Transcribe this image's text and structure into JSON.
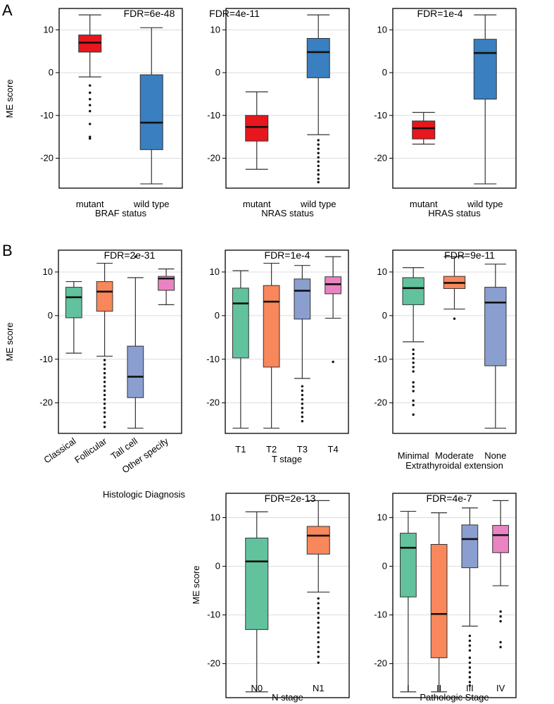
{
  "panel_labels": [
    "A",
    "B"
  ],
  "chart_data": [
    {
      "type": "boxplot",
      "title": "FDR=6e-48",
      "xlabel": "BRAF status",
      "ylabel": "ME score",
      "ylim": [
        -27,
        15
      ],
      "yticks": [
        10,
        0,
        -10,
        -20
      ],
      "categories": [
        "mutant",
        "wild type"
      ],
      "boxes": [
        {
          "name": "mutant",
          "min": -1,
          "q1": 4.8,
          "median": 7,
          "q3": 8.8,
          "max": 13.5,
          "color": "#e8161d",
          "outliers": [
            -3,
            -4.7,
            -6.2,
            -7.6,
            -9,
            -12,
            -15,
            -15.4
          ]
        },
        {
          "name": "wild type",
          "min": -26,
          "q1": -18,
          "median": -11.7,
          "q3": -0.5,
          "max": 10.5,
          "color": "#3a7fc0",
          "outliers": []
        }
      ]
    },
    {
      "type": "boxplot",
      "title": "FDR=4e-11",
      "xlabel": "NRAS status",
      "ylabel": "",
      "ylim": [
        -27,
        15
      ],
      "yticks": [
        10,
        0,
        -10,
        -20
      ],
      "categories": [
        "mutant",
        "wild type"
      ],
      "boxes": [
        {
          "name": "mutant",
          "min": -22.6,
          "q1": -16,
          "median": -12.7,
          "q3": -10,
          "max": -4.5,
          "color": "#e8161d",
          "outliers": []
        },
        {
          "name": "wild type",
          "min": -14.5,
          "q1": -1.2,
          "median": 4.8,
          "q3": 8,
          "max": 13.5,
          "color": "#3a7fc0",
          "outliers": [
            -15.8,
            -16.8,
            -17.8,
            -18.8,
            -19.8,
            -20.8,
            -21.8,
            -22.8,
            -23.8,
            -24.8,
            -25.6
          ]
        }
      ]
    },
    {
      "type": "boxplot",
      "title": "FDR=1e-4",
      "xlabel": "HRAS status",
      "ylabel": "",
      "ylim": [
        -27,
        15
      ],
      "yticks": [
        10,
        0,
        -10,
        -20
      ],
      "categories": [
        "mutant",
        "wild type"
      ],
      "boxes": [
        {
          "name": "mutant",
          "min": -16.7,
          "q1": -15.5,
          "median": -13,
          "q3": -11.3,
          "max": -9.3,
          "color": "#e8161d",
          "outliers": []
        },
        {
          "name": "wild type",
          "min": -26,
          "q1": -6.2,
          "median": 4.6,
          "q3": 7.8,
          "max": 13.5,
          "color": "#3a7fc0",
          "outliers": []
        }
      ]
    },
    {
      "type": "boxplot",
      "title": "FDR=2e-31",
      "xlabel": "Histologic Diagnosis",
      "ylabel": "ME score",
      "ylim": [
        -27,
        15
      ],
      "yticks": [
        10,
        0,
        -10,
        -20
      ],
      "categories": [
        "Classical",
        "Follicular",
        "Tall cell",
        "Other specify"
      ],
      "boxes": [
        {
          "name": "Classical",
          "min": -8.6,
          "q1": -0.5,
          "median": 4.2,
          "q3": 6.5,
          "max": 7.8,
          "color": "#62c29e",
          "outliers": []
        },
        {
          "name": "Follicular",
          "min": -9.3,
          "q1": 1,
          "median": 5.5,
          "q3": 7.8,
          "max": 12,
          "color": "#f8875b",
          "outliers": [
            -10.2,
            -11.2,
            -12.2,
            -13.2,
            -14.2,
            -15.2,
            -16.2,
            -17.2,
            -18.2,
            -19.2,
            -20.2,
            -21.2,
            -22.2,
            -23.2,
            -24.5,
            -25.5
          ]
        },
        {
          "name": "Tall cell",
          "min": -25.8,
          "q1": -18.8,
          "median": -14,
          "q3": -7,
          "max": 8.7,
          "color": "#8b9ed0",
          "outliers": [
            13.5
          ]
        },
        {
          "name": "Other specify",
          "min": 2.5,
          "q1": 5.8,
          "median": 8.5,
          "q3": 9,
          "max": 10.7,
          "color": "#e983c1",
          "outliers": []
        }
      ]
    },
    {
      "type": "boxplot",
      "title": "FDR=1e-4",
      "xlabel": "T stage",
      "ylabel": "",
      "ylim": [
        -27,
        15
      ],
      "yticks": [
        10,
        0,
        -10,
        -20
      ],
      "categories": [
        "T1",
        "T2",
        "T3",
        "T4"
      ],
      "boxes": [
        {
          "name": "T1",
          "min": -25.8,
          "q1": -9.7,
          "median": 2.8,
          "q3": 6.3,
          "max": 10.3,
          "color": "#62c29e",
          "outliers": []
        },
        {
          "name": "T2",
          "min": -25.8,
          "q1": -11.8,
          "median": 3.2,
          "q3": 6.9,
          "max": 12,
          "color": "#f8875b",
          "outliers": []
        },
        {
          "name": "T3",
          "min": -14.4,
          "q1": -0.8,
          "median": 5.7,
          "q3": 8.4,
          "max": 11.5,
          "color": "#8b9ed0",
          "outliers": [
            -16.2,
            -17.2,
            -18.2,
            -19.2,
            -20.2,
            -21.2,
            -22.2,
            -23.2,
            -24.2
          ]
        },
        {
          "name": "T4",
          "min": -0.6,
          "q1": 5,
          "median": 7.2,
          "q3": 8.9,
          "max": 13.5,
          "color": "#e983c1",
          "outliers": [
            -10.6
          ]
        }
      ]
    },
    {
      "type": "boxplot",
      "title": "FDR=9e-11",
      "xlabel": "Extrathyroidal extension",
      "ylabel": "",
      "ylim": [
        -27,
        15
      ],
      "yticks": [
        10,
        0,
        -10,
        -20
      ],
      "categories": [
        "Minimal",
        "Moderate",
        "None"
      ],
      "boxes": [
        {
          "name": "Minimal",
          "min": -6,
          "q1": 2.5,
          "median": 6.3,
          "q3": 8.7,
          "max": 11,
          "color": "#62c29e",
          "outliers": [
            -7.8,
            -8.8,
            -9.8,
            -10.8,
            -11.8,
            -12.8,
            -15.3,
            -16.3,
            -17.3,
            -19.5,
            -20.5,
            -22.7
          ]
        },
        {
          "name": "Moderate",
          "min": 1.5,
          "q1": 6.2,
          "median": 7.5,
          "q3": 9,
          "max": 13.5,
          "color": "#f8875b",
          "outliers": [
            -0.7
          ]
        },
        {
          "name": "None",
          "min": -25.8,
          "q1": -11.5,
          "median": 3,
          "q3": 6.5,
          "max": 11.8,
          "color": "#8b9ed0",
          "outliers": []
        }
      ]
    },
    {
      "type": "boxplot",
      "title": "FDR=2e-13",
      "xlabel": "N stage",
      "ylabel": "ME score",
      "ylim": [
        -27,
        15
      ],
      "yticks": [
        10,
        0,
        -10,
        -20
      ],
      "categories": [
        "N0",
        "N1"
      ],
      "boxes": [
        {
          "name": "N0",
          "min": -25.8,
          "q1": -13,
          "median": 1,
          "q3": 5.8,
          "max": 11.2,
          "color": "#62c29e",
          "outliers": []
        },
        {
          "name": "N1",
          "min": -5.3,
          "q1": 2.5,
          "median": 6.3,
          "q3": 8.2,
          "max": 13.5,
          "color": "#f8875b",
          "outliers": [
            -6.6,
            -7.6,
            -8.6,
            -9.6,
            -10.6,
            -11.6,
            -12.6,
            -13.6,
            -14.6,
            -15.6,
            -16.6,
            -17.6,
            -18.6,
            -19.8
          ]
        }
      ]
    },
    {
      "type": "boxplot",
      "title": "FDR=4e-7",
      "xlabel": "Pathologic Stage",
      "ylabel": "",
      "ylim": [
        -27,
        15
      ],
      "yticks": [
        10,
        0,
        -10,
        -20
      ],
      "categories": [
        "I",
        "II",
        "III",
        "IV"
      ],
      "boxes": [
        {
          "name": "I",
          "min": -25.8,
          "q1": -6.3,
          "median": 3.8,
          "q3": 6.8,
          "max": 11.3,
          "color": "#62c29e",
          "outliers": []
        },
        {
          "name": "II",
          "min": -25.8,
          "q1": -18.8,
          "median": -9.8,
          "q3": 4.5,
          "max": 11,
          "color": "#f8875b",
          "outliers": []
        },
        {
          "name": "III",
          "min": -12.3,
          "q1": -0.3,
          "median": 5.6,
          "q3": 8.5,
          "max": 12,
          "color": "#8b9ed0",
          "outliers": [
            -14.3,
            -15.3,
            -16.3,
            -17.3,
            -18.8,
            -19.8,
            -20.8,
            -21.8,
            -22.8,
            -23.8,
            -24.5
          ]
        },
        {
          "name": "IV",
          "min": -4,
          "q1": 2.8,
          "median": 6.4,
          "q3": 8.4,
          "max": 13.5,
          "color": "#e983c1",
          "outliers": [
            -9.3,
            -10.3,
            -11.3,
            -15.6,
            -16.6
          ]
        }
      ]
    }
  ]
}
